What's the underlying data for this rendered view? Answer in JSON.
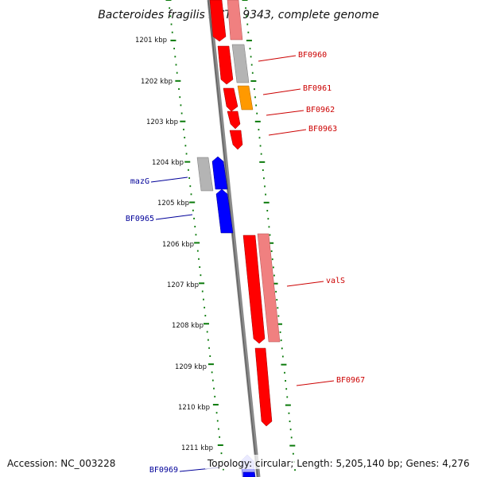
{
  "title": "Bacteroides fragilis NCTC 9343, complete genome",
  "accession": "Accession: NC_003228",
  "topology": "Topology: circular; Length: 5,205,140 bp; Genes: 4,276",
  "kbp_labels": [
    "1201 kbp",
    "1202 kbp",
    "1203 kbp",
    "1204 kbp",
    "1205 kbp",
    "1206 kbp",
    "1207 kbp",
    "1208 kbp",
    "1209 kbp",
    "1210 kbp",
    "1211 kbp"
  ],
  "colors": {
    "ruler": "#0a7a0a",
    "backbone": "#7f7f7f",
    "forward_gene": "#ff0000",
    "forward_label": "#cc0000",
    "reverse_gene": "#0000ff",
    "reverse_label": "#000099",
    "pseudo_red": "#f08080",
    "gray_gene": "#b4b4b4",
    "orange_gene": "#ff9900",
    "light_blue_gene": "#aaaaff"
  },
  "gene_labels": {
    "BF0960": "BF0960",
    "BF0961": "BF0961",
    "BF0962": "BF0962",
    "BF0963": "BF0963",
    "mazG": "mazG",
    "BF0965": "BF0965",
    "valS": "valS",
    "BF0967": "BF0967",
    "BF0969": "BF0969"
  }
}
